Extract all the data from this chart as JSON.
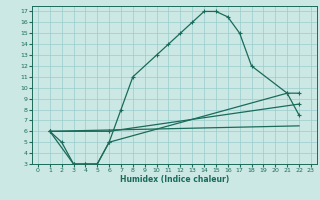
{
  "xlabel": "Humidex (Indice chaleur)",
  "bg_color": "#cce8e4",
  "grid_color": "#99cccc",
  "line_color": "#1a6b5a",
  "xlim": [
    -0.5,
    23.5
  ],
  "ylim": [
    3,
    17.5
  ],
  "xticks": [
    0,
    1,
    2,
    3,
    4,
    5,
    6,
    7,
    8,
    9,
    10,
    11,
    12,
    13,
    14,
    15,
    16,
    17,
    18,
    19,
    20,
    21,
    22,
    23
  ],
  "yticks": [
    3,
    4,
    5,
    6,
    7,
    8,
    9,
    10,
    11,
    12,
    13,
    14,
    15,
    16,
    17
  ],
  "curve1_x": [
    1,
    2,
    3,
    4,
    5,
    6,
    7,
    8,
    10,
    11,
    12,
    13,
    14,
    15,
    16,
    17,
    18,
    21,
    22
  ],
  "curve1_y": [
    6,
    5,
    3,
    3,
    3,
    5,
    8,
    11,
    13,
    14,
    15,
    16,
    17,
    17,
    16.5,
    15,
    12,
    9.5,
    9.5
  ],
  "curve2_x": [
    1,
    3,
    4,
    5,
    6,
    21,
    22
  ],
  "curve2_y": [
    6,
    3,
    3,
    3,
    5,
    9.5,
    7.5
  ],
  "curve3_x": [
    1,
    6,
    22
  ],
  "curve3_y": [
    6,
    6,
    8.5
  ],
  "curve4_x": [
    1,
    22
  ],
  "curve4_y": [
    6,
    6.5
  ]
}
